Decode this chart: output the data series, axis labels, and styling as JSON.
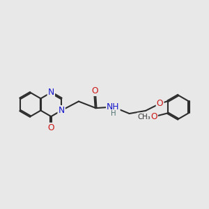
{
  "bg_color": "#e8e8e8",
  "bond_color": "#2d2d2d",
  "bond_lw": 1.5,
  "dbo": 0.052,
  "atom_colors": {
    "N": "#1515cc",
    "O": "#cc1515",
    "NH": "#1515cc",
    "C": "#2d2d2d"
  },
  "font_size": 8.8,
  "xlim": [
    0.3,
    9.0
  ],
  "ylim": [
    3.2,
    7.0
  ],
  "figsize": [
    3.0,
    3.0
  ],
  "dpi": 100,
  "hex_r": 0.5
}
